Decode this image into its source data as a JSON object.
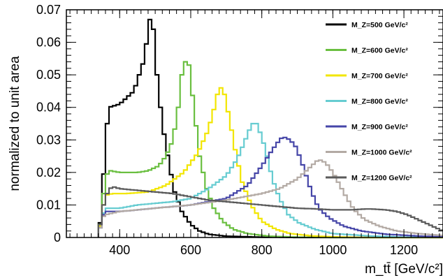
{
  "chart_data": {
    "type": "line",
    "drawstyle": "step",
    "xlabel": "m_tt̄ [GeV/c²]",
    "ylabel": "normalized to unit area",
    "xlim": [
      250,
      1310
    ],
    "ylim": [
      0,
      0.07
    ],
    "xticks": [
      400,
      600,
      800,
      1000,
      1200
    ],
    "yticks": [
      0,
      0.01,
      0.02,
      0.03,
      0.04,
      0.05,
      0.06,
      0.07
    ],
    "ytick_labels": [
      "0",
      "0.01",
      "0.02",
      "0.03",
      "0.04",
      "0.05",
      "0.06",
      "0.07"
    ],
    "xtick_labels": [
      "400",
      "600",
      "800",
      "1000",
      "1200"
    ],
    "bin_width": 10,
    "grid": false,
    "legend_position": "top-right",
    "series": [
      {
        "name": "M_Z=500 GeV/c²",
        "color": "#000000",
        "points": [
          [
            340,
            0
          ],
          [
            350,
            0.009
          ],
          [
            360,
            0.03
          ],
          [
            370,
            0.04
          ],
          [
            400,
            0.041
          ],
          [
            420,
            0.043
          ],
          [
            440,
            0.045
          ],
          [
            455,
            0.05
          ],
          [
            470,
            0.055
          ],
          [
            480,
            0.064
          ],
          [
            485,
            0.067
          ],
          [
            495,
            0.064
          ],
          [
            505,
            0.05
          ],
          [
            520,
            0.035
          ],
          [
            540,
            0.022
          ],
          [
            555,
            0.014
          ],
          [
            575,
            0.008
          ],
          [
            600,
            0.004
          ],
          [
            625,
            0.002
          ],
          [
            650,
            0.001
          ],
          [
            700,
            0.0004
          ],
          [
            800,
            0.0001
          ],
          [
            900,
            0
          ]
        ]
      },
      {
        "name": "M_Z=600 GeV/c²",
        "color": "#6abf40",
        "points": [
          [
            340,
            0
          ],
          [
            350,
            0.008
          ],
          [
            360,
            0.019
          ],
          [
            375,
            0.0205
          ],
          [
            400,
            0.02
          ],
          [
            450,
            0.02
          ],
          [
            480,
            0.0205
          ],
          [
            510,
            0.022
          ],
          [
            530,
            0.025
          ],
          [
            550,
            0.03
          ],
          [
            565,
            0.04
          ],
          [
            575,
            0.05
          ],
          [
            585,
            0.054
          ],
          [
            595,
            0.053
          ],
          [
            610,
            0.039
          ],
          [
            625,
            0.025
          ],
          [
            645,
            0.015
          ],
          [
            665,
            0.009
          ],
          [
            690,
            0.005
          ],
          [
            720,
            0.0025
          ],
          [
            760,
            0.0012
          ],
          [
            820,
            0.0004
          ],
          [
            900,
            0.0001
          ],
          [
            1000,
            0
          ]
        ]
      },
      {
        "name": "M_Z=700 GeV/c²",
        "color": "#f2e600",
        "points": [
          [
            340,
            0
          ],
          [
            350,
            0.007
          ],
          [
            360,
            0.013
          ],
          [
            380,
            0.0135
          ],
          [
            420,
            0.0135
          ],
          [
            480,
            0.014
          ],
          [
            530,
            0.016
          ],
          [
            580,
            0.02
          ],
          [
            620,
            0.026
          ],
          [
            645,
            0.032
          ],
          [
            660,
            0.037
          ],
          [
            675,
            0.044
          ],
          [
            685,
            0.046
          ],
          [
            695,
            0.044
          ],
          [
            710,
            0.036
          ],
          [
            725,
            0.027
          ],
          [
            745,
            0.017
          ],
          [
            770,
            0.01
          ],
          [
            800,
            0.005
          ],
          [
            840,
            0.0025
          ],
          [
            880,
            0.0012
          ],
          [
            940,
            0.0005
          ],
          [
            1000,
            0.0002
          ],
          [
            1100,
            0
          ]
        ]
      },
      {
        "name": "M_Z=800 GeV/c²",
        "color": "#66ccd1",
        "points": [
          [
            340,
            0
          ],
          [
            350,
            0.006
          ],
          [
            360,
            0.009
          ],
          [
            400,
            0.009
          ],
          [
            450,
            0.01
          ],
          [
            500,
            0.0105
          ],
          [
            550,
            0.011
          ],
          [
            600,
            0.012
          ],
          [
            650,
            0.015
          ],
          [
            700,
            0.019
          ],
          [
            730,
            0.024
          ],
          [
            750,
            0.029
          ],
          [
            765,
            0.033
          ],
          [
            775,
            0.035
          ],
          [
            785,
            0.035
          ],
          [
            800,
            0.031
          ],
          [
            815,
            0.025
          ],
          [
            830,
            0.018
          ],
          [
            850,
            0.012
          ],
          [
            875,
            0.007
          ],
          [
            905,
            0.0045
          ],
          [
            950,
            0.0025
          ],
          [
            1000,
            0.0012
          ],
          [
            1100,
            0.0005
          ],
          [
            1200,
            0.0001
          ]
        ]
      },
      {
        "name": "M_Z=900 GeV/c²",
        "color": "#4646a8",
        "points": [
          [
            340,
            0
          ],
          [
            350,
            0.006
          ],
          [
            360,
            0.008
          ],
          [
            400,
            0.008
          ],
          [
            500,
            0.009
          ],
          [
            600,
            0.01
          ],
          [
            700,
            0.012
          ],
          [
            760,
            0.016
          ],
          [
            800,
            0.022
          ],
          [
            830,
            0.027
          ],
          [
            850,
            0.03
          ],
          [
            860,
            0.031
          ],
          [
            880,
            0.03
          ],
          [
            895,
            0.028
          ],
          [
            910,
            0.024
          ],
          [
            925,
            0.019
          ],
          [
            940,
            0.014
          ],
          [
            960,
            0.009
          ],
          [
            990,
            0.006
          ],
          [
            1030,
            0.0035
          ],
          [
            1080,
            0.002
          ],
          [
            1150,
            0.001
          ],
          [
            1250,
            0.0004
          ],
          [
            1310,
            0.0002
          ]
        ]
      },
      {
        "name": "M_Z=1000 GeV/c²",
        "color": "#b3aaa4",
        "points": [
          [
            340,
            0
          ],
          [
            350,
            0.006
          ],
          [
            360,
            0.007
          ],
          [
            400,
            0.008
          ],
          [
            500,
            0.009
          ],
          [
            600,
            0.01
          ],
          [
            700,
            0.0115
          ],
          [
            800,
            0.0135
          ],
          [
            850,
            0.015
          ],
          [
            900,
            0.018
          ],
          [
            930,
            0.021
          ],
          [
            950,
            0.023
          ],
          [
            960,
            0.024
          ],
          [
            980,
            0.023
          ],
          [
            1000,
            0.02
          ],
          [
            1020,
            0.016
          ],
          [
            1040,
            0.012
          ],
          [
            1060,
            0.0085
          ],
          [
            1090,
            0.0055
          ],
          [
            1130,
            0.0035
          ],
          [
            1180,
            0.002
          ],
          [
            1240,
            0.0012
          ],
          [
            1310,
            0.0006
          ]
        ]
      },
      {
        "name": "M_Z=1200 GeV/c²",
        "color": "#5a5a5a",
        "points": [
          [
            340,
            0
          ],
          [
            350,
            0.008
          ],
          [
            360,
            0.012
          ],
          [
            370,
            0.015
          ],
          [
            385,
            0.0155
          ],
          [
            400,
            0.015
          ],
          [
            450,
            0.0145
          ],
          [
            500,
            0.014
          ],
          [
            550,
            0.0135
          ],
          [
            600,
            0.0125
          ],
          [
            650,
            0.0115
          ],
          [
            700,
            0.011
          ],
          [
            750,
            0.0105
          ],
          [
            800,
            0.01
          ],
          [
            850,
            0.0095
          ],
          [
            900,
            0.009
          ],
          [
            950,
            0.0088
          ],
          [
            1000,
            0.0085
          ],
          [
            1050,
            0.0085
          ],
          [
            1100,
            0.0088
          ],
          [
            1150,
            0.0085
          ],
          [
            1180,
            0.008
          ],
          [
            1210,
            0.007
          ],
          [
            1240,
            0.0055
          ],
          [
            1270,
            0.004
          ],
          [
            1290,
            0.003
          ],
          [
            1310,
            0.002
          ]
        ]
      }
    ]
  }
}
